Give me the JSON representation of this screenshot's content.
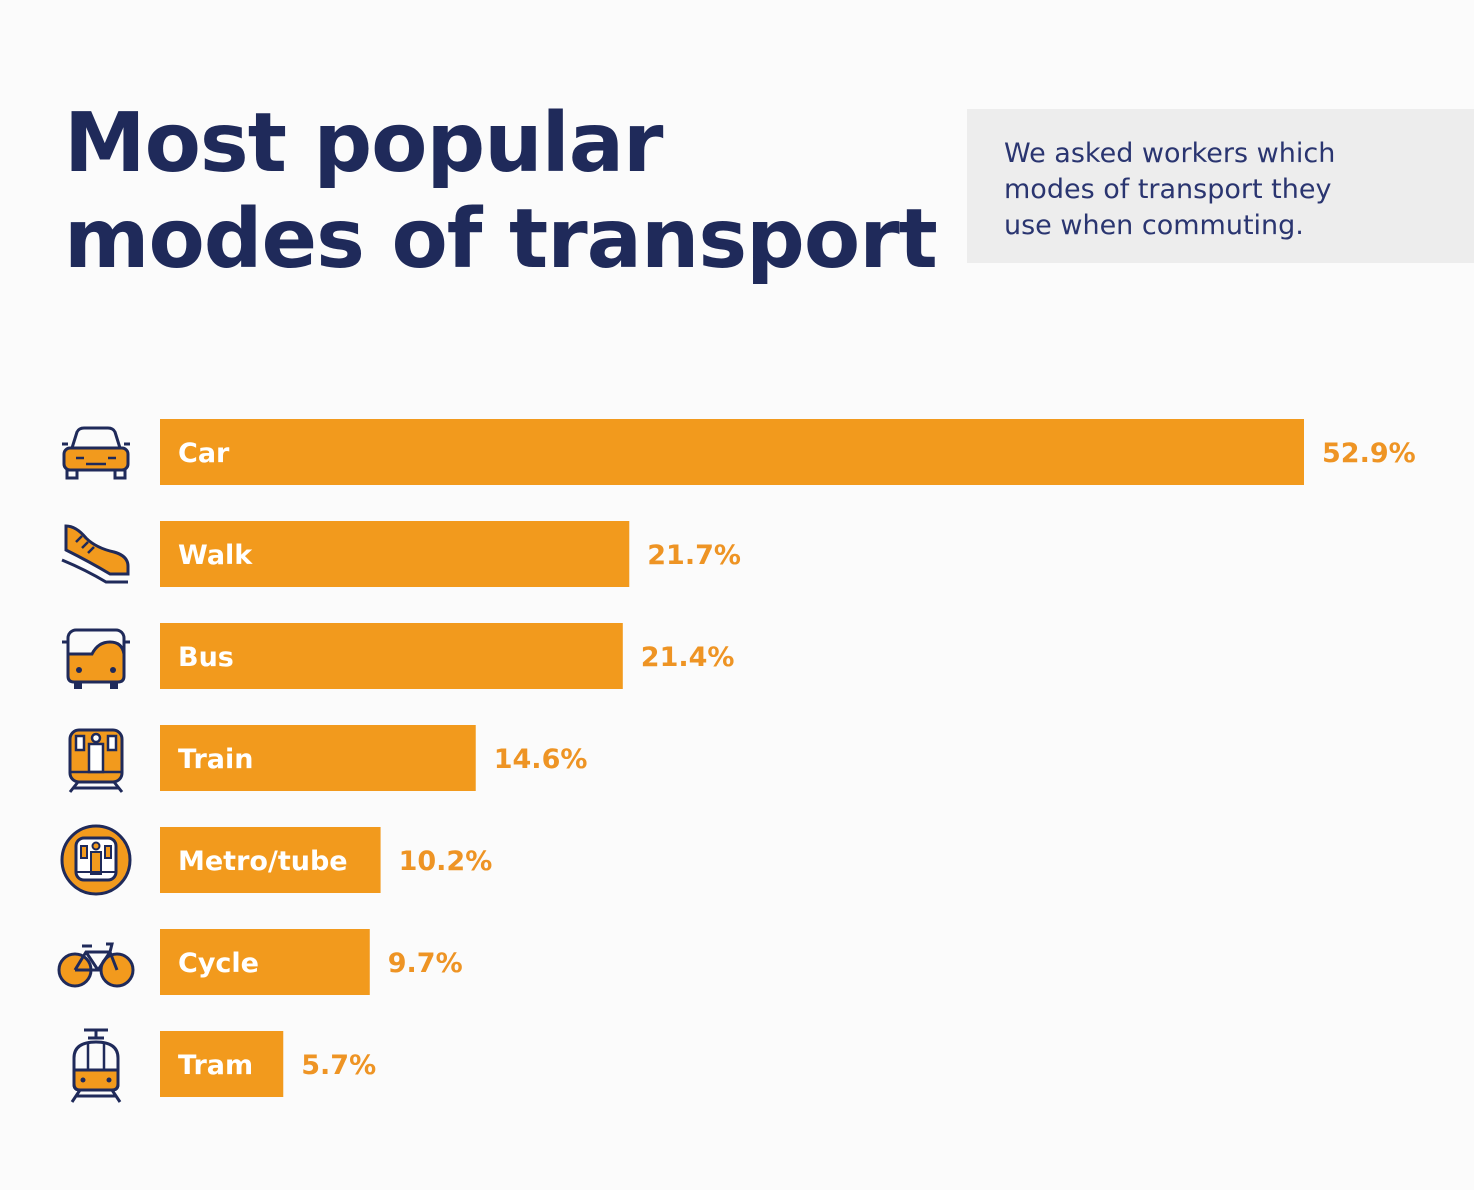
{
  "title_lines": [
    "Most popular",
    "modes of transport"
  ],
  "description_lines": [
    "We asked workers which",
    "modes of transport they",
    "use when commuting."
  ],
  "colors": {
    "title": "#1f2a5a",
    "bar": "#f29a1d",
    "value_text": "#ee9424",
    "icon_stroke": "#1f2a5a",
    "note_bg": "#ededed"
  },
  "chart_data": {
    "type": "bar",
    "orientation": "horizontal",
    "categories": [
      "Car",
      "Walk",
      "Bus",
      "Train",
      "Metro/tube",
      "Cycle",
      "Tram"
    ],
    "values": [
      52.9,
      21.7,
      21.4,
      14.6,
      10.2,
      9.7,
      5.7
    ],
    "value_labels": [
      "52.9%",
      "21.7%",
      "21.4%",
      "14.6%",
      "10.2%",
      "9.7%",
      "5.7%"
    ],
    "icons": [
      "car-icon",
      "shoe-icon",
      "bus-icon",
      "train-icon",
      "metro-icon",
      "bicycle-icon",
      "tram-icon"
    ],
    "unit": "%",
    "grid": false,
    "legend": "none"
  }
}
